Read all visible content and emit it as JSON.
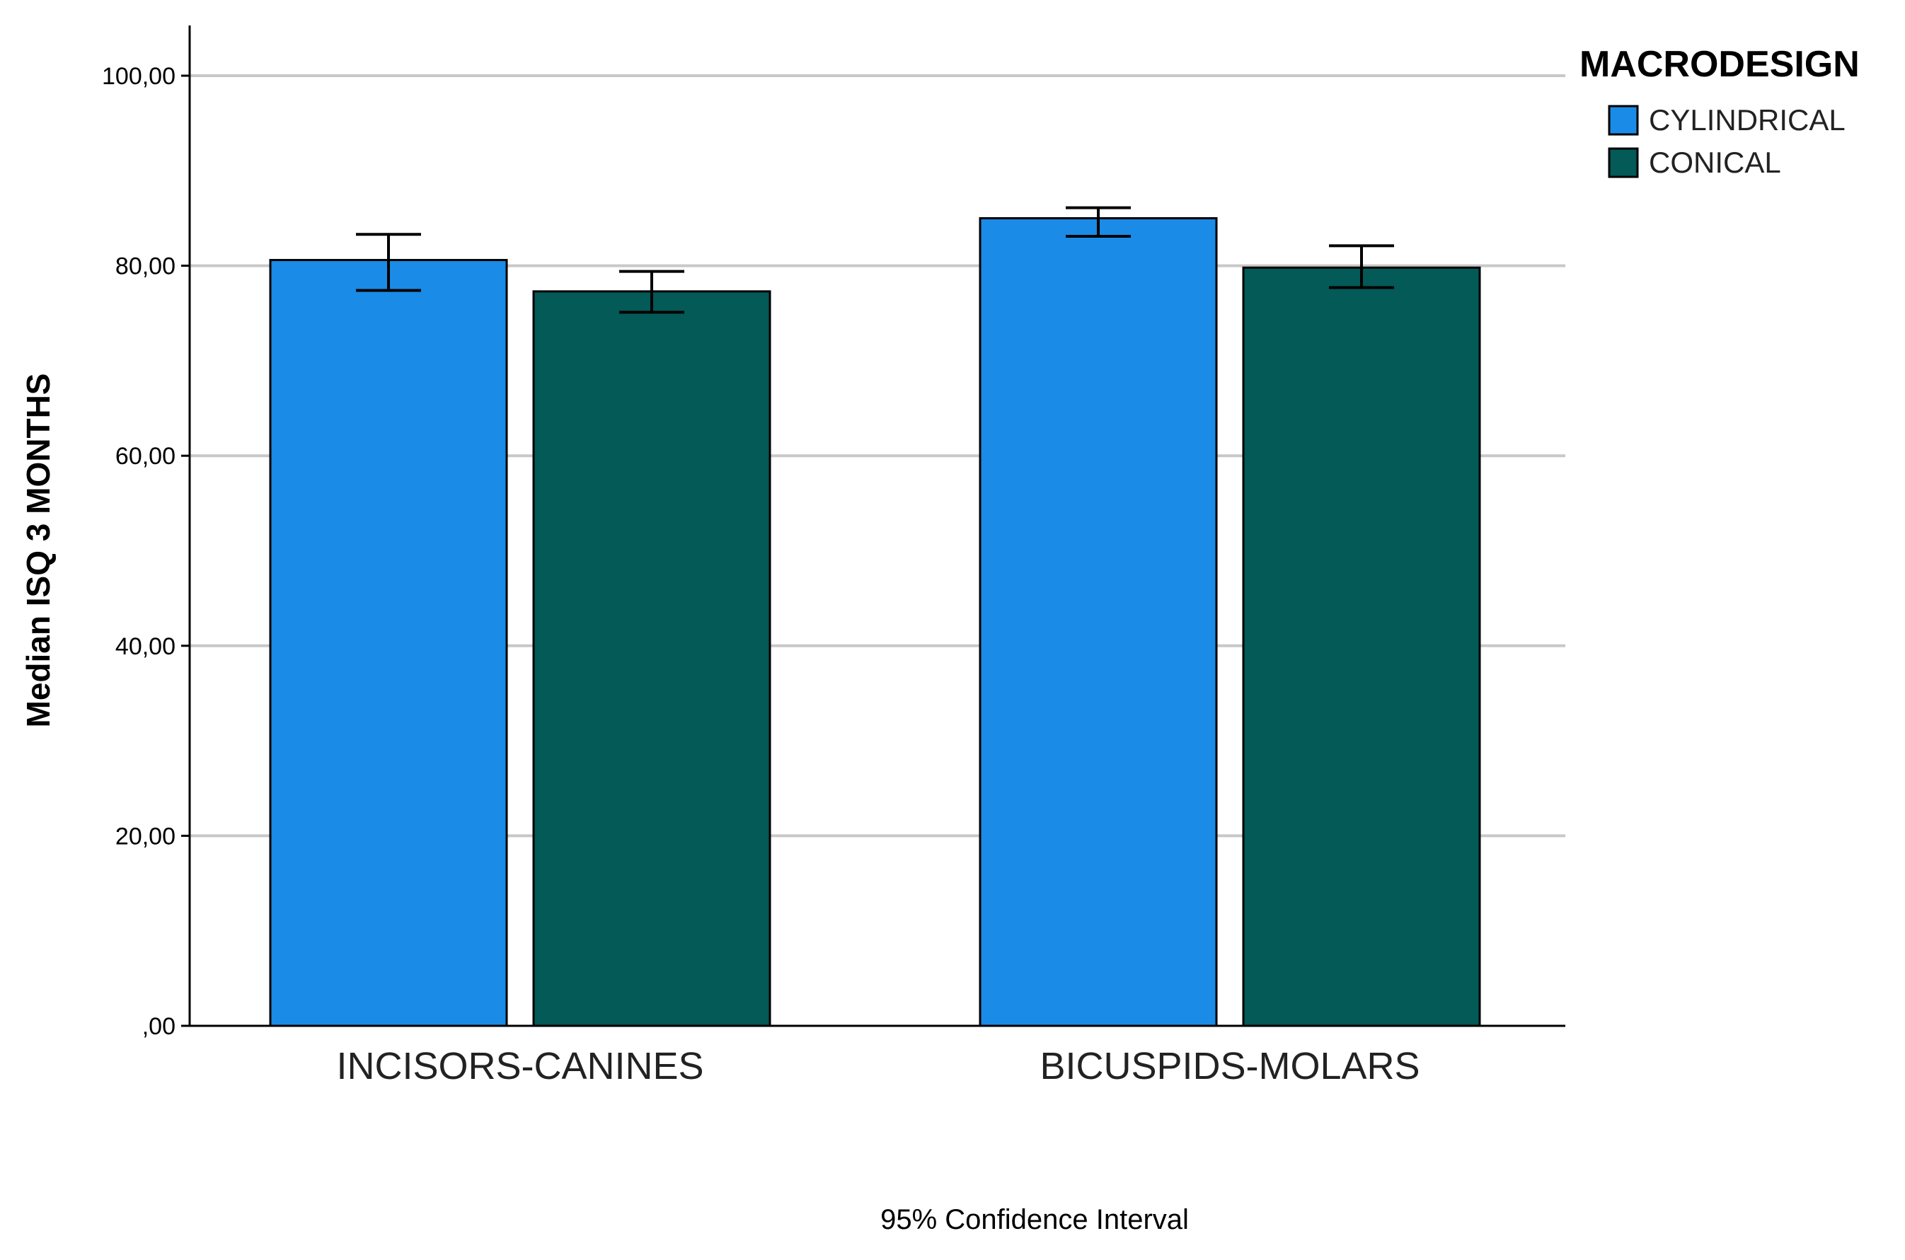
{
  "chart_data": {
    "type": "bar",
    "title": "",
    "ylabel": "Median ISQ 3 MONTHS",
    "xlabel": "95% Confidence Interval",
    "categories": [
      "INCISORS-CANINES",
      "BICUSPIDS-MOLARS"
    ],
    "ylim": [
      0,
      100
    ],
    "yticks": [
      0,
      20,
      40,
      60,
      80,
      100
    ],
    "ytick_labels": [
      ",00",
      "20,00",
      "40,00",
      "60,00",
      "80,00",
      "100,00"
    ],
    "grid": true,
    "legend": {
      "title": "MACRODESIGN",
      "placement": "top-right"
    },
    "series": [
      {
        "name": "CYLINDRICAL",
        "color": "#1a8be6",
        "values": [
          80.6,
          85.0
        ],
        "ci_low": [
          77.4,
          83.1
        ],
        "ci_high": [
          83.3,
          86.1
        ]
      },
      {
        "name": "CONICAL",
        "color": "#035a57",
        "values": [
          77.3,
          79.8
        ],
        "ci_low": [
          75.1,
          77.7
        ],
        "ci_high": [
          79.4,
          82.1
        ]
      }
    ]
  }
}
